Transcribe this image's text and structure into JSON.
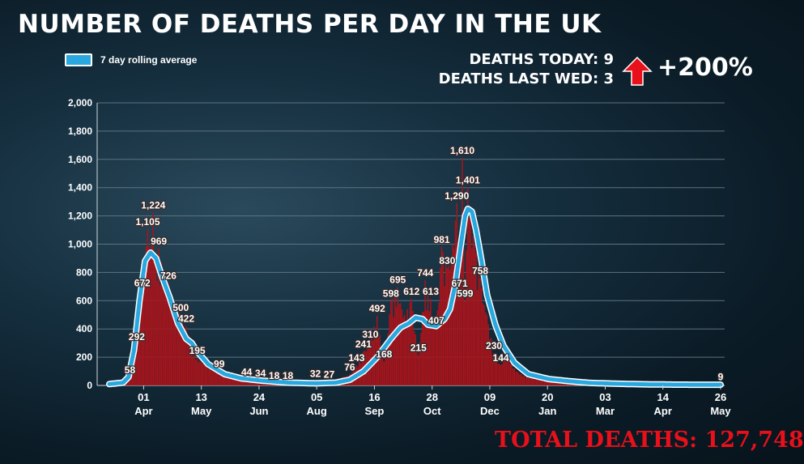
{
  "header": {
    "title": "NUMBER OF DEATHS PER DAY IN THE UK",
    "legend_label": "7 day rolling average",
    "deaths_today": "DEATHS TODAY: 9",
    "deaths_last_wed": "DEATHS LAST WED: 3",
    "change": "+200%",
    "total_deaths": "TOTAL DEATHS: 127,748"
  },
  "colors": {
    "bar": "#a8141b",
    "rolling_line": "#29a8e0",
    "rolling_outline": "#ffffff",
    "arrow": "#e8101a",
    "total_text": "#e8101a"
  },
  "chart_data": {
    "type": "bar",
    "x_unit": "days since first bar",
    "ylim": [
      0,
      2000
    ],
    "yticks": [
      0,
      200,
      400,
      600,
      800,
      1000,
      1200,
      1400,
      1600,
      1800,
      2000
    ],
    "yticklabels": [
      "0",
      "200",
      "400",
      "600",
      "800",
      "1,000",
      "1,200",
      "1,400",
      "1,600",
      "1,800",
      "2,000"
    ],
    "xticks": [
      {
        "day": 25,
        "line1": "01",
        "line2": "Apr"
      },
      {
        "day": 67,
        "line1": "13",
        "line2": "May"
      },
      {
        "day": 109,
        "line1": "24",
        "line2": "Jun"
      },
      {
        "day": 151,
        "line1": "05",
        "line2": "Aug"
      },
      {
        "day": 193,
        "line1": "16",
        "line2": "Sep"
      },
      {
        "day": 235,
        "line1": "28",
        "line2": "Oct"
      },
      {
        "day": 277,
        "line1": "09",
        "line2": "Dec"
      },
      {
        "day": 319,
        "line1": "20",
        "line2": "Jan"
      },
      {
        "day": 361,
        "line1": "03",
        "line2": "Mar"
      },
      {
        "day": 403,
        "line1": "14",
        "line2": "Apr"
      },
      {
        "day": 445,
        "line1": "26",
        "line2": "May"
      }
    ],
    "daily_deaths_anchors": [
      [
        0,
        1
      ],
      [
        10,
        5
      ],
      [
        15,
        58
      ],
      [
        20,
        292
      ],
      [
        24,
        672
      ],
      [
        28,
        1105
      ],
      [
        30,
        950
      ],
      [
        32,
        1224
      ],
      [
        34,
        880
      ],
      [
        36,
        969
      ],
      [
        40,
        780
      ],
      [
        43,
        726
      ],
      [
        48,
        560
      ],
      [
        52,
        500
      ],
      [
        56,
        422
      ],
      [
        60,
        300
      ],
      [
        64,
        195
      ],
      [
        70,
        160
      ],
      [
        80,
        99
      ],
      [
        90,
        70
      ],
      [
        100,
        44
      ],
      [
        110,
        34
      ],
      [
        120,
        18
      ],
      [
        130,
        18
      ],
      [
        140,
        15
      ],
      [
        150,
        32
      ],
      [
        160,
        27
      ],
      [
        170,
        60
      ],
      [
        175,
        76
      ],
      [
        180,
        143
      ],
      [
        185,
        241
      ],
      [
        190,
        310
      ],
      [
        195,
        492
      ],
      [
        200,
        168
      ],
      [
        205,
        598
      ],
      [
        210,
        695
      ],
      [
        215,
        500
      ],
      [
        220,
        612
      ],
      [
        225,
        215
      ],
      [
        230,
        744
      ],
      [
        234,
        613
      ],
      [
        238,
        407
      ],
      [
        242,
        981
      ],
      [
        246,
        830
      ],
      [
        250,
        1000
      ],
      [
        253,
        1290
      ],
      [
        255,
        671
      ],
      [
        257,
        1610
      ],
      [
        259,
        599
      ],
      [
        261,
        1401
      ],
      [
        263,
        1200
      ],
      [
        266,
        1000
      ],
      [
        270,
        758
      ],
      [
        275,
        500
      ],
      [
        280,
        230
      ],
      [
        285,
        144
      ],
      [
        290,
        250
      ],
      [
        295,
        120
      ],
      [
        300,
        80
      ],
      [
        310,
        50
      ],
      [
        320,
        30
      ],
      [
        330,
        20
      ],
      [
        340,
        12
      ],
      [
        350,
        9
      ],
      [
        360,
        8
      ],
      [
        370,
        7
      ],
      [
        380,
        6
      ],
      [
        390,
        5
      ],
      [
        400,
        5
      ],
      [
        410,
        6
      ],
      [
        420,
        5
      ],
      [
        430,
        6
      ],
      [
        440,
        5
      ],
      [
        445,
        9
      ]
    ],
    "rolling_average_anchors": [
      [
        0,
        10
      ],
      [
        10,
        20
      ],
      [
        14,
        60
      ],
      [
        18,
        250
      ],
      [
        22,
        600
      ],
      [
        26,
        880
      ],
      [
        30,
        940
      ],
      [
        34,
        900
      ],
      [
        38,
        780
      ],
      [
        44,
        620
      ],
      [
        50,
        440
      ],
      [
        56,
        330
      ],
      [
        60,
        300
      ],
      [
        64,
        240
      ],
      [
        72,
        150
      ],
      [
        84,
        80
      ],
      [
        96,
        50
      ],
      [
        110,
        35
      ],
      [
        130,
        20
      ],
      [
        150,
        15
      ],
      [
        165,
        20
      ],
      [
        175,
        40
      ],
      [
        185,
        100
      ],
      [
        195,
        200
      ],
      [
        205,
        330
      ],
      [
        212,
        410
      ],
      [
        218,
        440
      ],
      [
        223,
        480
      ],
      [
        228,
        470
      ],
      [
        232,
        430
      ],
      [
        238,
        420
      ],
      [
        244,
        470
      ],
      [
        248,
        540
      ],
      [
        252,
        720
      ],
      [
        256,
        1000
      ],
      [
        259,
        1200
      ],
      [
        261,
        1250
      ],
      [
        264,
        1230
      ],
      [
        267,
        1100
      ],
      [
        271,
        880
      ],
      [
        275,
        640
      ],
      [
        281,
        430
      ],
      [
        287,
        280
      ],
      [
        295,
        160
      ],
      [
        305,
        80
      ],
      [
        320,
        45
      ],
      [
        335,
        30
      ],
      [
        350,
        18
      ],
      [
        370,
        12
      ],
      [
        390,
        8
      ],
      [
        410,
        6
      ],
      [
        430,
        5
      ],
      [
        445,
        5
      ]
    ],
    "data_labels": [
      {
        "day": 15,
        "value": 58,
        "text": "58"
      },
      {
        "day": 20,
        "value": 292,
        "text": "292"
      },
      {
        "day": 24,
        "value": 672,
        "text": "672"
      },
      {
        "day": 28,
        "value": 1105,
        "text": "1,105"
      },
      {
        "day": 32,
        "value": 1224,
        "text": "1,224"
      },
      {
        "day": 36,
        "value": 969,
        "text": "969"
      },
      {
        "day": 43,
        "value": 726,
        "text": "726"
      },
      {
        "day": 52,
        "value": 500,
        "text": "500"
      },
      {
        "day": 56,
        "value": 422,
        "text": "422"
      },
      {
        "day": 64,
        "value": 195,
        "text": "195"
      },
      {
        "day": 80,
        "value": 99,
        "text": "99"
      },
      {
        "day": 100,
        "value": 44,
        "text": "44"
      },
      {
        "day": 110,
        "value": 34,
        "text": "34"
      },
      {
        "day": 120,
        "value": 18,
        "text": "18"
      },
      {
        "day": 130,
        "value": 18,
        "text": "18"
      },
      {
        "day": 150,
        "value": 32,
        "text": "32"
      },
      {
        "day": 160,
        "value": 27,
        "text": "27"
      },
      {
        "day": 175,
        "value": 76,
        "text": "76"
      },
      {
        "day": 180,
        "value": 143,
        "text": "143"
      },
      {
        "day": 185,
        "value": 241,
        "text": "241"
      },
      {
        "day": 190,
        "value": 310,
        "text": "310"
      },
      {
        "day": 195,
        "value": 492,
        "text": "492"
      },
      {
        "day": 200,
        "value": 168,
        "text": "168"
      },
      {
        "day": 205,
        "value": 598,
        "text": "598"
      },
      {
        "day": 210,
        "value": 695,
        "text": "695"
      },
      {
        "day": 220,
        "value": 612,
        "text": "612"
      },
      {
        "day": 225,
        "value": 215,
        "text": "215"
      },
      {
        "day": 230,
        "value": 744,
        "text": "744"
      },
      {
        "day": 234,
        "value": 613,
        "text": "613"
      },
      {
        "day": 238,
        "value": 407,
        "text": "407"
      },
      {
        "day": 242,
        "value": 981,
        "text": "981"
      },
      {
        "day": 246,
        "value": 830,
        "text": "830"
      },
      {
        "day": 253,
        "value": 1290,
        "text": "1,290"
      },
      {
        "day": 255,
        "value": 671,
        "text": "671"
      },
      {
        "day": 257,
        "value": 1610,
        "text": "1,610"
      },
      {
        "day": 259,
        "value": 599,
        "text": "599"
      },
      {
        "day": 261,
        "value": 1401,
        "text": "1,401"
      },
      {
        "day": 270,
        "value": 758,
        "text": "758"
      },
      {
        "day": 280,
        "value": 230,
        "text": "230"
      },
      {
        "day": 285,
        "value": 144,
        "text": "144"
      },
      {
        "day": 445,
        "value": 9,
        "text": "9"
      }
    ]
  }
}
